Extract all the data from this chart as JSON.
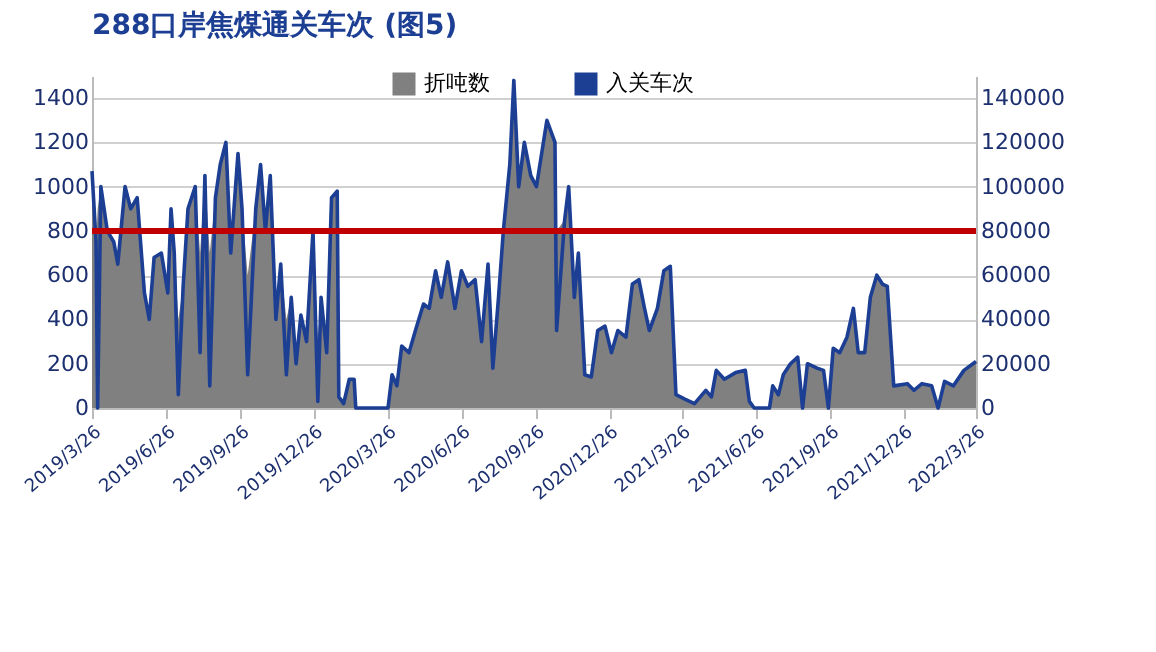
{
  "chart_data": {
    "type": "area",
    "title": "288口岸焦煤通关车次 (图5)",
    "x": [
      "2019-03-26",
      "2019-03-31",
      "2019-04-02",
      "2019-04-06",
      "2019-04-14",
      "2019-04-22",
      "2019-04-27",
      "2019-05-06",
      "2019-05-13",
      "2019-05-21",
      "2019-05-30",
      "2019-06-05",
      "2019-06-11",
      "2019-06-20",
      "2019-06-28",
      "2019-07-02",
      "2019-07-06",
      "2019-07-11",
      "2019-07-17",
      "2019-07-23",
      "2019-08-01",
      "2019-08-07",
      "2019-08-13",
      "2019-08-19",
      "2019-08-26",
      "2019-09-01",
      "2019-09-08",
      "2019-09-14",
      "2019-09-23",
      "2019-09-28",
      "2019-10-05",
      "2019-10-15",
      "2019-10-21",
      "2019-10-27",
      "2019-11-02",
      "2019-11-09",
      "2019-11-15",
      "2019-11-22",
      "2019-11-28",
      "2019-12-04",
      "2019-12-10",
      "2019-12-17",
      "2019-12-25",
      "2019-12-31",
      "2020-01-04",
      "2020-01-11",
      "2020-01-17",
      "2020-01-24",
      "2020-01-26",
      "2020-02-01",
      "2020-02-08",
      "2020-02-14",
      "2020-02-16",
      "2020-03-27",
      "2020-04-01",
      "2020-04-07",
      "2020-04-13",
      "2020-04-22",
      "2020-04-30",
      "2020-05-10",
      "2020-05-17",
      "2020-05-25",
      "2020-06-01",
      "2020-06-09",
      "2020-06-18",
      "2020-06-26",
      "2020-07-04",
      "2020-07-13",
      "2020-07-21",
      "2020-07-29",
      "2020-08-04",
      "2020-08-11",
      "2020-08-17",
      "2020-08-25",
      "2020-08-30",
      "2020-09-05",
      "2020-09-12",
      "2020-09-20",
      "2020-09-27",
      "2020-10-10",
      "2020-10-20",
      "2020-10-22",
      "2020-11-01",
      "2020-11-06",
      "2020-11-13",
      "2020-11-18",
      "2020-11-26",
      "2020-12-04",
      "2020-12-12",
      "2020-12-21",
      "2020-12-29",
      "2021-01-06",
      "2021-01-16",
      "2021-01-24",
      "2021-02-01",
      "2021-02-08",
      "2021-02-14",
      "2021-02-24",
      "2021-03-04",
      "2021-03-12",
      "2021-03-19",
      "2021-03-30",
      "2021-04-11",
      "2021-04-25",
      "2021-05-02",
      "2021-05-08",
      "2021-05-18",
      "2021-06-01",
      "2021-06-13",
      "2021-06-18",
      "2021-06-24",
      "2021-07-13",
      "2021-07-17",
      "2021-07-24",
      "2021-07-30",
      "2021-08-08",
      "2021-08-17",
      "2021-08-23",
      "2021-08-29",
      "2021-09-10",
      "2021-09-18",
      "2021-09-24",
      "2021-09-30",
      "2021-10-08",
      "2021-10-17",
      "2021-10-25",
      "2021-10-31",
      "2021-11-08",
      "2021-11-15",
      "2021-11-23",
      "2021-11-30",
      "2021-12-06",
      "2021-12-14",
      "2021-12-31",
      "2022-01-08",
      "2022-01-18",
      "2022-01-30",
      "2022-02-07",
      "2022-02-15",
      "2022-02-26",
      "2022-03-11",
      "2022-03-26"
    ],
    "series": [
      {
        "name": "折吨数",
        "color": "#808080",
        "values": [
          1070,
          750,
          900,
          1000,
          800,
          750,
          650,
          1000,
          900,
          950,
          520,
          400,
          680,
          700,
          520,
          900,
          700,
          400,
          550,
          900,
          1000,
          700,
          1050,
          700,
          950,
          1100,
          1200,
          700,
          1150,
          900,
          600,
          900,
          1100,
          800,
          1050,
          400,
          650,
          400,
          500,
          200,
          420,
          300,
          800,
          300,
          500,
          250,
          950,
          980,
          50,
          20,
          130,
          130,
          0,
          0,
          150,
          100,
          280,
          250,
          350,
          470,
          450,
          620,
          500,
          660,
          450,
          620,
          550,
          580,
          300,
          650,
          180,
          500,
          800,
          1100,
          1400,
          1000,
          1200,
          1050,
          1000,
          1300,
          1200,
          800,
          850,
          1000,
          500,
          700,
          150,
          140,
          350,
          370,
          250,
          350,
          320,
          560,
          580,
          450,
          350,
          450,
          620,
          640,
          60,
          40,
          20,
          80,
          50,
          170,
          130,
          160,
          170,
          30,
          0,
          0,
          100,
          60,
          150,
          200,
          230,
          0,
          200,
          180,
          170,
          0,
          270,
          250,
          320,
          450,
          250,
          250,
          500,
          600,
          560,
          550,
          100,
          110,
          80,
          110,
          100,
          0,
          120,
          100,
          170,
          210
        ]
      },
      {
        "name": "入关车次",
        "type": "line",
        "axis": "y2",
        "color": "#1c3f94",
        "values": [
          107000,
          75000,
          0,
          100000,
          80000,
          75000,
          65000,
          100000,
          90000,
          95000,
          52000,
          40000,
          68000,
          70000,
          52000,
          90000,
          70000,
          6000,
          55000,
          90000,
          100000,
          25000,
          105000,
          10000,
          95000,
          110000,
          120000,
          70000,
          115000,
          90000,
          15000,
          90000,
          110000,
          80000,
          105000,
          40000,
          65000,
          15000,
          50000,
          20000,
          42000,
          30000,
          80000,
          3000,
          50000,
          25000,
          95000,
          98000,
          5000,
          2000,
          13000,
          13000,
          0,
          0,
          15000,
          10000,
          28000,
          25000,
          35000,
          47000,
          45000,
          62000,
          50000,
          66000,
          45000,
          62000,
          55000,
          58000,
          30000,
          65000,
          18000,
          50000,
          80000,
          110000,
          148000,
          100000,
          120000,
          105000,
          100000,
          130000,
          120000,
          35000,
          85000,
          100000,
          50000,
          70000,
          15000,
          14000,
          35000,
          37000,
          25000,
          35000,
          32000,
          56000,
          58000,
          45000,
          35000,
          45000,
          62000,
          64000,
          6000,
          4000,
          2000,
          8000,
          5000,
          17000,
          13000,
          16000,
          17000,
          3000,
          0,
          0,
          10000,
          6000,
          15000,
          20000,
          23000,
          0,
          20000,
          18000,
          17000,
          0,
          27000,
          25000,
          32000,
          45000,
          25000,
          25000,
          50000,
          60000,
          56000,
          55000,
          10000,
          11000,
          8000,
          11000,
          10000,
          0,
          12000,
          10000,
          17000,
          21000
        ]
      }
    ],
    "xlim": [
      "2019-03-26",
      "2022-03-26"
    ],
    "xticks": [
      {
        "value": "2019-03-26",
        "label": "2019/3/26"
      },
      {
        "value": "2019-06-26",
        "label": "2019/6/26"
      },
      {
        "value": "2019-09-26",
        "label": "2019/9/26"
      },
      {
        "value": "2019-12-26",
        "label": "2019/12/26"
      },
      {
        "value": "2020-03-26",
        "label": "2020/3/26"
      },
      {
        "value": "2020-06-26",
        "label": "2020/6/26"
      },
      {
        "value": "2020-09-26",
        "label": "2020/9/26"
      },
      {
        "value": "2020-12-26",
        "label": "2020/12/26"
      },
      {
        "value": "2021-03-26",
        "label": "2021/3/26"
      },
      {
        "value": "2021-06-26",
        "label": "2021/6/26"
      },
      {
        "value": "2021-09-26",
        "label": "2021/9/26"
      },
      {
        "value": "2021-12-26",
        "label": "2021/12/26"
      },
      {
        "value": "2022-03-26",
        "label": "2022/3/26"
      }
    ],
    "ylim": [
      0,
      1500
    ],
    "yticks": [
      0,
      200,
      400,
      600,
      800,
      1000,
      1200,
      1400
    ],
    "y2lim": [
      0,
      150000
    ],
    "y2ticks": [
      0,
      20000,
      40000,
      60000,
      80000,
      100000,
      120000,
      140000
    ],
    "ref_lines": [
      {
        "axis": "y",
        "value": 800,
        "color": "#c00000"
      }
    ],
    "grid": "y",
    "legend": "top"
  }
}
